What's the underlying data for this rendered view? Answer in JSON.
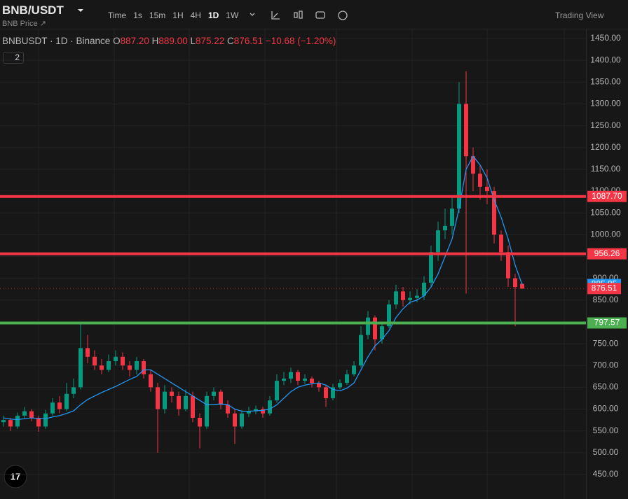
{
  "header": {
    "symbol": "BNB/USDT",
    "subtitle": "BNB Price",
    "intervals": [
      "Time",
      "1s",
      "15m",
      "1H",
      "4H",
      "1D",
      "1W"
    ],
    "trading_view": "Trading View"
  },
  "legend": {
    "title": "BNBUSDT · 1D · Binance",
    "o_label": "O",
    "open": "887.20",
    "h_label": "H",
    "high": "889.00",
    "l_label": "L",
    "low": "875.22",
    "c_label": "C",
    "close": "876.51",
    "change": "−10.68 (−1.20%)",
    "indicators_count": "2"
  },
  "chart_data": {
    "type": "candlestick",
    "up_color": "#089981",
    "down_color": "#f23645",
    "candles": [
      [
        570,
        585,
        560,
        575
      ],
      [
        575,
        580,
        550,
        560
      ],
      [
        560,
        592,
        555,
        585
      ],
      [
        585,
        605,
        578,
        595
      ],
      [
        595,
        600,
        572,
        580
      ],
      [
        580,
        585,
        548,
        560
      ],
      [
        560,
        598,
        555,
        590
      ],
      [
        590,
        625,
        585,
        615
      ],
      [
        615,
        630,
        590,
        600
      ],
      [
        600,
        660,
        595,
        635
      ],
      [
        635,
        670,
        625,
        650
      ],
      [
        650,
        795,
        645,
        740
      ],
      [
        740,
        770,
        705,
        720
      ],
      [
        720,
        735,
        690,
        700
      ],
      [
        700,
        715,
        680,
        690
      ],
      [
        690,
        725,
        685,
        710
      ],
      [
        710,
        735,
        700,
        720
      ],
      [
        720,
        730,
        690,
        700
      ],
      [
        700,
        710,
        675,
        690
      ],
      [
        690,
        720,
        680,
        710
      ],
      [
        710,
        715,
        670,
        680
      ],
      [
        680,
        690,
        640,
        650
      ],
      [
        650,
        660,
        500,
        600
      ],
      [
        600,
        655,
        590,
        640
      ],
      [
        640,
        650,
        615,
        630
      ],
      [
        630,
        640,
        585,
        600
      ],
      [
        600,
        645,
        595,
        630
      ],
      [
        630,
        640,
        570,
        580
      ],
      [
        580,
        590,
        510,
        560
      ],
      [
        560,
        640,
        555,
        630
      ],
      [
        630,
        650,
        620,
        640
      ],
      [
        640,
        645,
        600,
        610
      ],
      [
        610,
        620,
        580,
        590
      ],
      [
        590,
        600,
        520,
        560
      ],
      [
        560,
        598,
        555,
        590
      ],
      [
        590,
        605,
        582,
        595
      ],
      [
        595,
        608,
        588,
        600
      ],
      [
        600,
        605,
        580,
        590
      ],
      [
        590,
        630,
        585,
        620
      ],
      [
        620,
        680,
        615,
        665
      ],
      [
        665,
        685,
        655,
        670
      ],
      [
        670,
        695,
        660,
        685
      ],
      [
        685,
        690,
        655,
        665
      ],
      [
        665,
        680,
        658,
        670
      ],
      [
        670,
        675,
        650,
        660
      ],
      [
        660,
        665,
        640,
        650
      ],
      [
        650,
        655,
        605,
        625
      ],
      [
        625,
        658,
        620,
        650
      ],
      [
        650,
        668,
        645,
        660
      ],
      [
        660,
        690,
        655,
        680
      ],
      [
        680,
        710,
        675,
        700
      ],
      [
        700,
        790,
        695,
        770
      ],
      [
        770,
        825,
        760,
        810
      ],
      [
        810,
        815,
        735,
        760
      ],
      [
        760,
        800,
        750,
        790
      ],
      [
        790,
        850,
        785,
        840
      ],
      [
        840,
        885,
        830,
        870
      ],
      [
        870,
        880,
        835,
        850
      ],
      [
        850,
        870,
        840,
        855
      ],
      [
        855,
        875,
        845,
        860
      ],
      [
        860,
        905,
        850,
        890
      ],
      [
        890,
        975,
        880,
        960
      ],
      [
        960,
        1030,
        940,
        1010
      ],
      [
        1010,
        1060,
        990,
        1020
      ],
      [
        1020,
        1090,
        1000,
        1060
      ],
      [
        1060,
        1350,
        1050,
        1300
      ],
      [
        1300,
        1375,
        865,
        1180
      ],
      [
        1180,
        1200,
        1100,
        1140
      ],
      [
        1140,
        1160,
        1080,
        1110
      ],
      [
        1110,
        1150,
        1070,
        1100
      ],
      [
        1100,
        1110,
        980,
        1000
      ],
      [
        1000,
        1010,
        940,
        960
      ],
      [
        960,
        975,
        880,
        900
      ],
      [
        900,
        910,
        790,
        880
      ],
      [
        887.2,
        889,
        875.22,
        876.51
      ]
    ],
    "ma": {
      "color": "#2196f3",
      "values": [
        580,
        577,
        576,
        578,
        580,
        578,
        578,
        582,
        585,
        590,
        596,
        610,
        622,
        630,
        638,
        645,
        652,
        660,
        668,
        675,
        690,
        690,
        680,
        670,
        660,
        650,
        640,
        630,
        620,
        610,
        610,
        612,
        610,
        600,
        595,
        595,
        596,
        597,
        600,
        610,
        625,
        640,
        650,
        655,
        658,
        660,
        655,
        645,
        642,
        648,
        660,
        690,
        720,
        745,
        760,
        780,
        810,
        830,
        845,
        850,
        860,
        880,
        910,
        950,
        990,
        1060,
        1150,
        1180,
        1160,
        1130,
        1080,
        1040,
        990,
        930,
        885.85
      ]
    },
    "ylim": [
      393.8,
      1470.9
    ],
    "yticks": [
      {
        "value": 450,
        "label": "450.00"
      },
      {
        "value": 500,
        "label": "500.00"
      },
      {
        "value": 550,
        "label": "550.00"
      },
      {
        "value": 600,
        "label": "600.00"
      },
      {
        "value": 650,
        "label": "650.00"
      },
      {
        "value": 700,
        "label": "700.00"
      },
      {
        "value": 750,
        "label": "750.00"
      },
      {
        "value": 800,
        "label": "800.00"
      },
      {
        "value": 850,
        "label": "850.00"
      },
      {
        "value": 900,
        "label": "900.00"
      },
      {
        "value": 950,
        "label": "950.00"
      },
      {
        "value": 1000,
        "label": "1000.00"
      },
      {
        "value": 1050,
        "label": "1050.00"
      },
      {
        "value": 1100,
        "label": "1100.00"
      },
      {
        "value": 1150,
        "label": "1150.00"
      },
      {
        "value": 1200,
        "label": "1200.00"
      },
      {
        "value": 1250,
        "label": "1250.00"
      },
      {
        "value": 1300,
        "label": "1300.00"
      },
      {
        "value": 1350,
        "label": "1350.00"
      },
      {
        "value": 1400,
        "label": "1400.00"
      },
      {
        "value": 1450,
        "label": "1450.00"
      }
    ],
    "levels": [
      {
        "value": 1087.7,
        "label": "1087.70",
        "color": "#f23645"
      },
      {
        "value": 956.26,
        "color": "#f23645"
      },
      {
        "value": 797.57,
        "color": "#4caf50"
      }
    ],
    "grid": true
  }
}
